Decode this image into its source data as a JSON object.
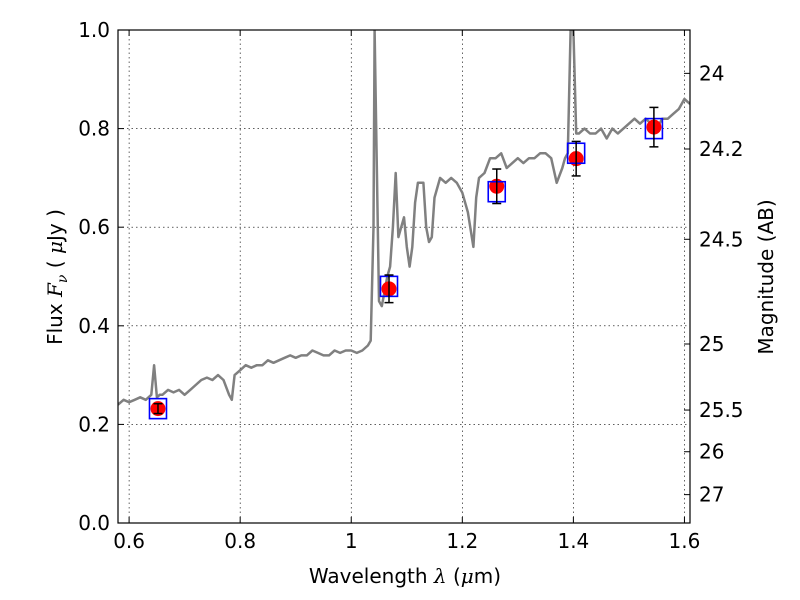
{
  "chart_data": {
    "type": "scatter",
    "xlabel": "Wavelength",
    "xlabel_math": "λ",
    "xlabel_unit_open": " (",
    "xlabel_unit_math": "μ",
    "xlabel_unit_close": "m)",
    "ylabel": "Flux",
    "ylabel_math": "F",
    "ylabel_math_sub": "ν",
    "ylabel_unit_open": " ( ",
    "ylabel_unit_math": "μ",
    "ylabel_unit_close": "Jy )",
    "y2label": "Magnitude (AB)",
    "xlim": [
      0.58,
      1.61
    ],
    "ylim": [
      0.0,
      1.0
    ],
    "grid": true,
    "x_ticks": [
      {
        "value": 0.6,
        "label": "0.6"
      },
      {
        "value": 0.8,
        "label": "0.8"
      },
      {
        "value": 1.0,
        "label": "1"
      },
      {
        "value": 1.2,
        "label": "1.2"
      },
      {
        "value": 1.4,
        "label": "1.4"
      },
      {
        "value": 1.6,
        "label": "1.6"
      }
    ],
    "y_ticks": [
      {
        "value": 0.0,
        "label": "0.0"
      },
      {
        "value": 0.2,
        "label": "0.2"
      },
      {
        "value": 0.4,
        "label": "0.4"
      },
      {
        "value": 0.6,
        "label": "0.6"
      },
      {
        "value": 0.8,
        "label": "0.8"
      },
      {
        "value": 1.0,
        "label": "1.0"
      }
    ],
    "y2_ticks": [
      {
        "value": 24,
        "label": "24"
      },
      {
        "value": 24.2,
        "label": "24.2"
      },
      {
        "value": 24.5,
        "label": "24.5"
      },
      {
        "value": 25,
        "label": "25"
      },
      {
        "value": 25.5,
        "label": "25.5"
      },
      {
        "value": 26,
        "label": "26"
      },
      {
        "value": 27,
        "label": "27"
      }
    ],
    "photometry": [
      {
        "x": 0.652,
        "y": 0.232,
        "err": 0.01,
        "model": 0.232
      },
      {
        "x": 1.068,
        "y": 0.475,
        "err": 0.028,
        "model": 0.48
      },
      {
        "x": 1.262,
        "y": 0.683,
        "err": 0.035,
        "model": 0.672
      },
      {
        "x": 1.405,
        "y": 0.739,
        "err": 0.035,
        "model": 0.75
      },
      {
        "x": 1.545,
        "y": 0.803,
        "err": 0.04,
        "model": 0.8
      }
    ],
    "spectrum": {
      "x": [
        0.58,
        0.59,
        0.6,
        0.61,
        0.62,
        0.63,
        0.64,
        0.645,
        0.65,
        0.655,
        0.66,
        0.67,
        0.68,
        0.69,
        0.7,
        0.71,
        0.72,
        0.73,
        0.74,
        0.75,
        0.76,
        0.77,
        0.78,
        0.785,
        0.79,
        0.8,
        0.81,
        0.82,
        0.83,
        0.84,
        0.85,
        0.86,
        0.87,
        0.88,
        0.89,
        0.9,
        0.91,
        0.92,
        0.93,
        0.94,
        0.95,
        0.96,
        0.97,
        0.98,
        0.99,
        1.0,
        1.01,
        1.02,
        1.03,
        1.035,
        1.04,
        1.042,
        1.045,
        1.05,
        1.055,
        1.06,
        1.065,
        1.07,
        1.075,
        1.08,
        1.085,
        1.09,
        1.095,
        1.1,
        1.105,
        1.11,
        1.115,
        1.12,
        1.13,
        1.135,
        1.14,
        1.145,
        1.15,
        1.16,
        1.17,
        1.18,
        1.19,
        1.2,
        1.21,
        1.22,
        1.225,
        1.23,
        1.24,
        1.25,
        1.26,
        1.27,
        1.28,
        1.29,
        1.3,
        1.31,
        1.32,
        1.33,
        1.34,
        1.35,
        1.36,
        1.37,
        1.38,
        1.385,
        1.39,
        1.395,
        1.4,
        1.405,
        1.41,
        1.42,
        1.43,
        1.44,
        1.45,
        1.46,
        1.47,
        1.48,
        1.49,
        1.5,
        1.51,
        1.52,
        1.53,
        1.54,
        1.55,
        1.56,
        1.57,
        1.58,
        1.59,
        1.6,
        1.61
      ],
      "y": [
        0.24,
        0.25,
        0.245,
        0.25,
        0.255,
        0.25,
        0.26,
        0.32,
        0.255,
        0.26,
        0.26,
        0.27,
        0.265,
        0.27,
        0.26,
        0.27,
        0.28,
        0.29,
        0.295,
        0.29,
        0.3,
        0.29,
        0.26,
        0.25,
        0.3,
        0.31,
        0.32,
        0.315,
        0.32,
        0.32,
        0.33,
        0.325,
        0.33,
        0.335,
        0.34,
        0.335,
        0.34,
        0.34,
        0.35,
        0.345,
        0.34,
        0.34,
        0.35,
        0.345,
        0.35,
        0.35,
        0.345,
        0.35,
        0.36,
        0.37,
        0.6,
        1.0,
        0.8,
        0.45,
        0.44,
        0.47,
        0.5,
        0.52,
        0.6,
        0.71,
        0.58,
        0.6,
        0.62,
        0.56,
        0.52,
        0.56,
        0.65,
        0.69,
        0.69,
        0.6,
        0.57,
        0.58,
        0.66,
        0.7,
        0.69,
        0.7,
        0.69,
        0.67,
        0.63,
        0.56,
        0.66,
        0.7,
        0.71,
        0.74,
        0.74,
        0.75,
        0.72,
        0.73,
        0.74,
        0.73,
        0.74,
        0.74,
        0.75,
        0.75,
        0.74,
        0.69,
        0.72,
        0.74,
        0.75,
        1.0,
        1.0,
        0.79,
        0.79,
        0.8,
        0.79,
        0.79,
        0.8,
        0.78,
        0.8,
        0.79,
        0.8,
        0.81,
        0.82,
        0.81,
        0.82,
        0.81,
        0.8,
        0.82,
        0.82,
        0.83,
        0.84,
        0.86,
        0.85
      ]
    },
    "colors": {
      "spectrum": "#808080",
      "observed": "#ff0000",
      "model_box": "#0000ff",
      "error_bar": "#000000"
    }
  }
}
